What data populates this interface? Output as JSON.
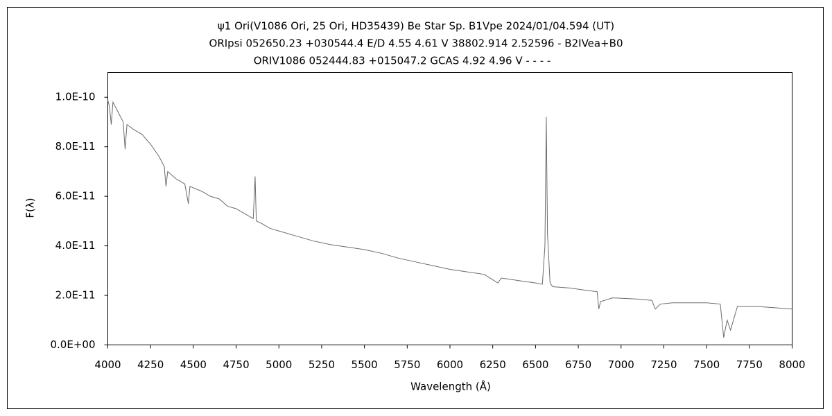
{
  "chart_data": {
    "type": "line",
    "title": "ψ1 Ori(V1086 Ori, 25 Ori, HD35439)   Be Star   Sp. B1Vpe   2024/01/04.594 (UT)",
    "subtitle": [
      "ORIpsi 052650.23 +030544.4 E/D 4.55 4.61 V 38802.914 2.52596 - B2IVea+B0",
      "ORIV1086 052444.83 +015047.2 GCAS 4.92 4.96 V - - - -"
    ],
    "x_label": "Wavelength (Å)",
    "y_label": "F(λ)",
    "color": "#6b6b6b",
    "xlim": [
      4000,
      8000
    ],
    "ylim": [
      0,
      1.1e-10
    ],
    "xticks": [
      4000,
      4250,
      4500,
      4750,
      5000,
      5250,
      5500,
      5750,
      6000,
      6250,
      6500,
      6750,
      7000,
      7250,
      7500,
      7750,
      8000
    ],
    "yticks": [
      {
        "value": 0,
        "label": "0.0E+00"
      },
      {
        "value": 2e-11,
        "label": "2.0E-11"
      },
      {
        "value": 4e-11,
        "label": "4.0E-11"
      },
      {
        "value": 6e-11,
        "label": "6.0E-11"
      },
      {
        "value": 8e-11,
        "label": "8.0E-11"
      },
      {
        "value": 1e-10,
        "label": "1.0E-10"
      }
    ],
    "x": [
      4000,
      4010,
      4020,
      4030,
      4060,
      4090,
      4101,
      4112,
      4150,
      4200,
      4250,
      4300,
      4330,
      4340,
      4350,
      4400,
      4450,
      4471,
      4480,
      4550,
      4600,
      4650,
      4700,
      4750,
      4800,
      4850,
      4861,
      4868,
      4900,
      4950,
      5000,
      5100,
      5200,
      5300,
      5400,
      5500,
      5600,
      5700,
      5800,
      5900,
      6000,
      6100,
      6200,
      6280,
      6300,
      6400,
      6500,
      6540,
      6555,
      6563,
      6570,
      6585,
      6600,
      6700,
      6800,
      6860,
      6870,
      6880,
      6950,
      7100,
      7180,
      7200,
      7230,
      7300,
      7500,
      7580,
      7600,
      7620,
      7640,
      7680,
      7800,
      7900,
      8000
    ],
    "values": [
      9.9e-11,
      9.6e-11,
      8.9e-11,
      9.8e-11,
      9.4e-11,
      9e-11,
      7.9e-11,
      8.9e-11,
      8.7e-11,
      8.5e-11,
      8.1e-11,
      7.6e-11,
      7.2e-11,
      6.4e-11,
      7e-11,
      6.7e-11,
      6.5e-11,
      5.7e-11,
      6.4e-11,
      6.2e-11,
      6e-11,
      5.9e-11,
      5.6e-11,
      5.5e-11,
      5.3e-11,
      5.1e-11,
      6.8e-11,
      5e-11,
      4.9e-11,
      4.7e-11,
      4.6e-11,
      4.4e-11,
      4.2e-11,
      4.05e-11,
      3.95e-11,
      3.85e-11,
      3.7e-11,
      3.5e-11,
      3.35e-11,
      3.2e-11,
      3.05e-11,
      2.95e-11,
      2.85e-11,
      2.5e-11,
      2.7e-11,
      2.6e-11,
      2.5e-11,
      2.45e-11,
      4e-11,
      9.2e-11,
      4.5e-11,
      2.5e-11,
      2.35e-11,
      2.3e-11,
      2.2e-11,
      2.15e-11,
      1.45e-11,
      1.75e-11,
      1.9e-11,
      1.85e-11,
      1.8e-11,
      1.45e-11,
      1.65e-11,
      1.7e-11,
      1.7e-11,
      1.65e-11,
      3e-12,
      1e-11,
      6e-12,
      1.55e-11,
      1.55e-11,
      1.5e-11,
      1.45e-11
    ]
  }
}
